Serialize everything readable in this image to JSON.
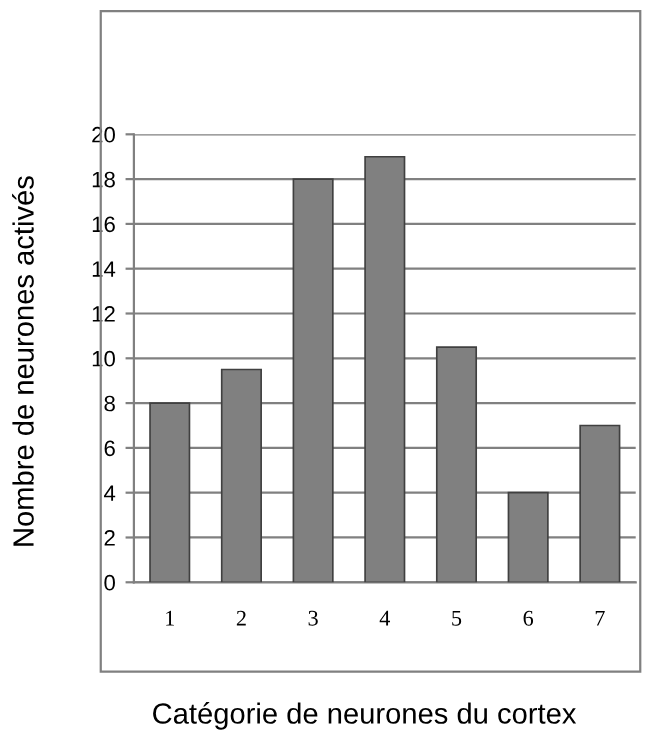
{
  "chart_data": {
    "type": "bar",
    "xlabel": "Catégorie de neurones du cortex",
    "ylabel": "Nombre de neurones activés",
    "categories": [
      "1",
      "2",
      "3",
      "4",
      "5",
      "6",
      "7"
    ],
    "values": [
      8,
      9.5,
      18,
      19,
      10.5,
      4,
      7
    ],
    "color": "#808080",
    "ylim": [
      0,
      20
    ],
    "yticks": [
      0,
      2,
      4,
      6,
      8,
      10,
      12,
      14,
      16,
      18,
      20
    ],
    "grid": "y",
    "legend": false
  }
}
